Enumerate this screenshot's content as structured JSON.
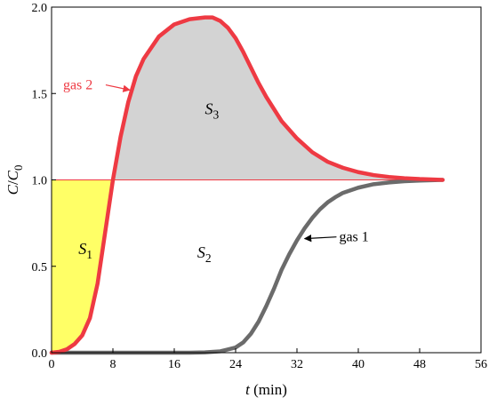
{
  "chart_data": {
    "type": "line",
    "xlabel": {
      "var": "t",
      "unit": " (min)"
    },
    "ylabel": {
      "main": "C",
      "sep": "/",
      "sub_main": "C",
      "sub": "0"
    },
    "xlim": [
      0,
      56
    ],
    "ylim": [
      0,
      2.0
    ],
    "xticks": [
      0,
      8,
      16,
      24,
      32,
      40,
      48,
      56
    ],
    "yticks": [
      "0.0",
      "0.5",
      "1.0",
      "1.5",
      "2.0"
    ],
    "series": [
      {
        "name": "gas 1",
        "color": "#6b6b6b",
        "x": [
          0,
          10,
          18,
          20,
          22,
          24,
          25,
          26,
          27,
          28,
          29,
          30,
          31,
          32,
          33,
          34,
          35,
          36,
          37,
          38,
          40,
          42,
          44,
          46,
          48,
          50,
          51
        ],
        "y": [
          0,
          0,
          0,
          0.002,
          0.008,
          0.03,
          0.06,
          0.11,
          0.18,
          0.27,
          0.37,
          0.48,
          0.57,
          0.65,
          0.72,
          0.78,
          0.83,
          0.87,
          0.9,
          0.925,
          0.955,
          0.975,
          0.985,
          0.992,
          0.996,
          0.999,
          1.0
        ]
      },
      {
        "name": "gas 2",
        "color": "#ee3a43",
        "x": [
          0,
          1,
          2,
          3,
          4,
          5,
          6,
          7,
          8,
          9,
          10,
          11,
          12,
          14,
          16,
          18,
          20,
          21,
          22,
          23,
          24,
          25,
          26,
          27,
          28,
          29,
          30,
          32,
          34,
          36,
          38,
          40,
          42,
          44,
          46,
          48,
          50,
          51
        ],
        "y": [
          0,
          0.005,
          0.02,
          0.05,
          0.1,
          0.2,
          0.4,
          0.7,
          1.0,
          1.25,
          1.45,
          1.6,
          1.7,
          1.83,
          1.9,
          1.93,
          1.94,
          1.94,
          1.92,
          1.88,
          1.82,
          1.74,
          1.65,
          1.56,
          1.48,
          1.41,
          1.34,
          1.24,
          1.16,
          1.105,
          1.07,
          1.045,
          1.028,
          1.017,
          1.01,
          1.005,
          1.002,
          1.0
        ]
      }
    ],
    "reference_line": {
      "y": 1.0,
      "color": "#ee3a43"
    },
    "regions": [
      {
        "label_main": "S",
        "label_sub": "1",
        "color": "#ffff66",
        "at": [
          3.5,
          0.57
        ]
      },
      {
        "label_main": "S",
        "label_sub": "2",
        "color": "none",
        "at": [
          19,
          0.55
        ]
      },
      {
        "label_main": "S",
        "label_sub": "3",
        "color": "#d3d3d3",
        "at": [
          20,
          1.38
        ]
      }
    ],
    "annotations": [
      {
        "text": "gas 2",
        "series": "gas 2",
        "text_at": [
          1.5,
          1.55
        ],
        "arrow_to": [
          10.2,
          1.52
        ]
      },
      {
        "text": "gas 1",
        "series": "gas 1",
        "text_at": [
          37.5,
          0.67
        ],
        "arrow_to": [
          33,
          0.66
        ]
      }
    ]
  }
}
